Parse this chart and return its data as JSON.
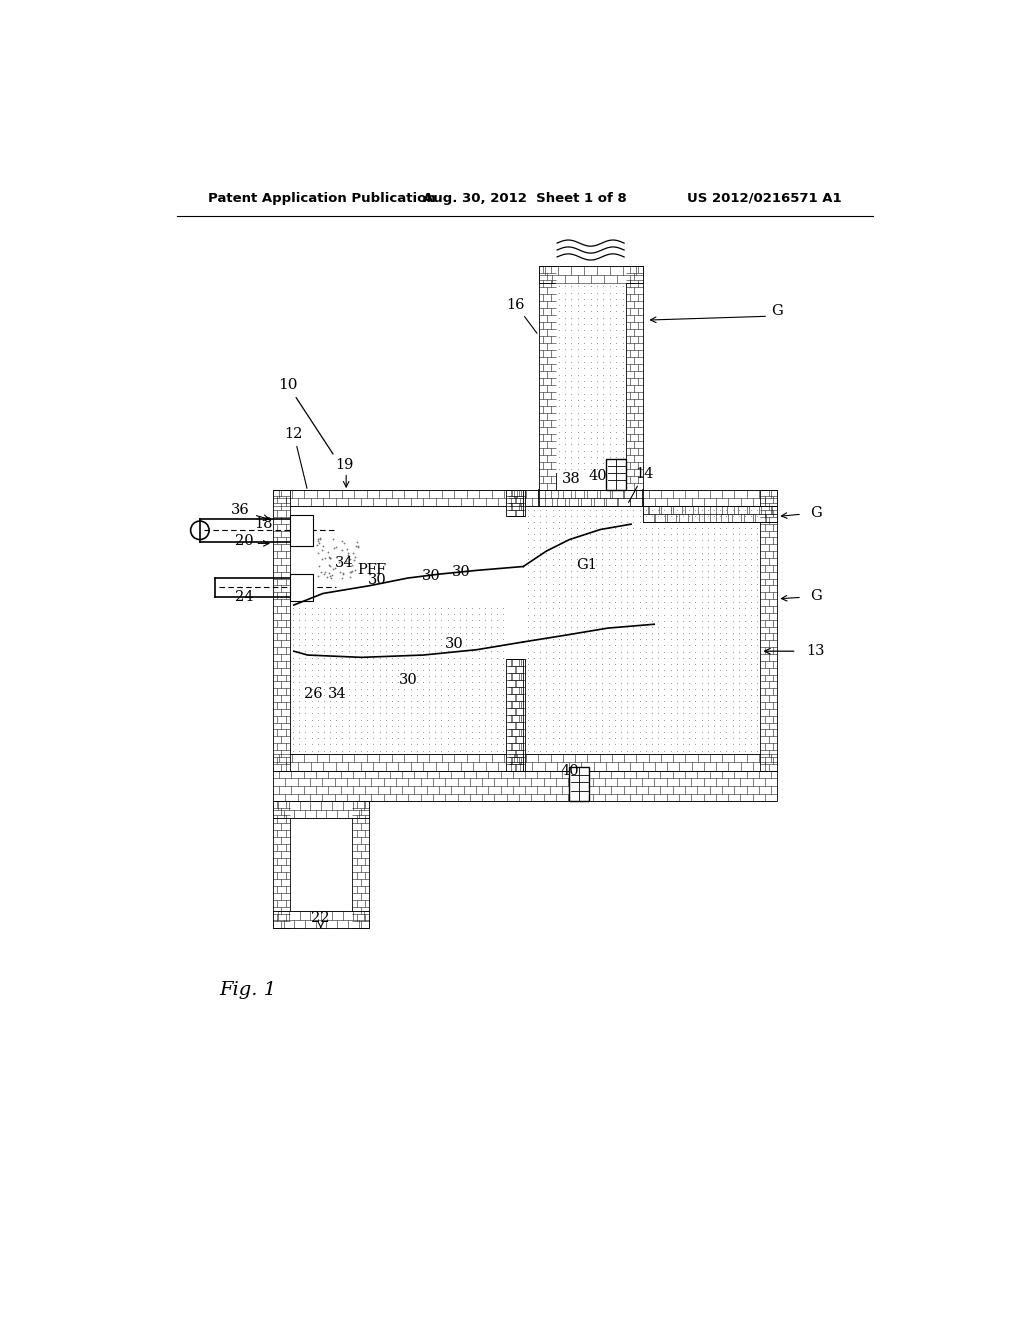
{
  "background_color": "#ffffff",
  "line_color": "#000000",
  "header": {
    "left": "Patent Application Publication",
    "center": "Aug. 30, 2012  Sheet 1 of 8",
    "right": "US 2012/0216571 A1"
  },
  "fig_label": "Fig. 1"
}
